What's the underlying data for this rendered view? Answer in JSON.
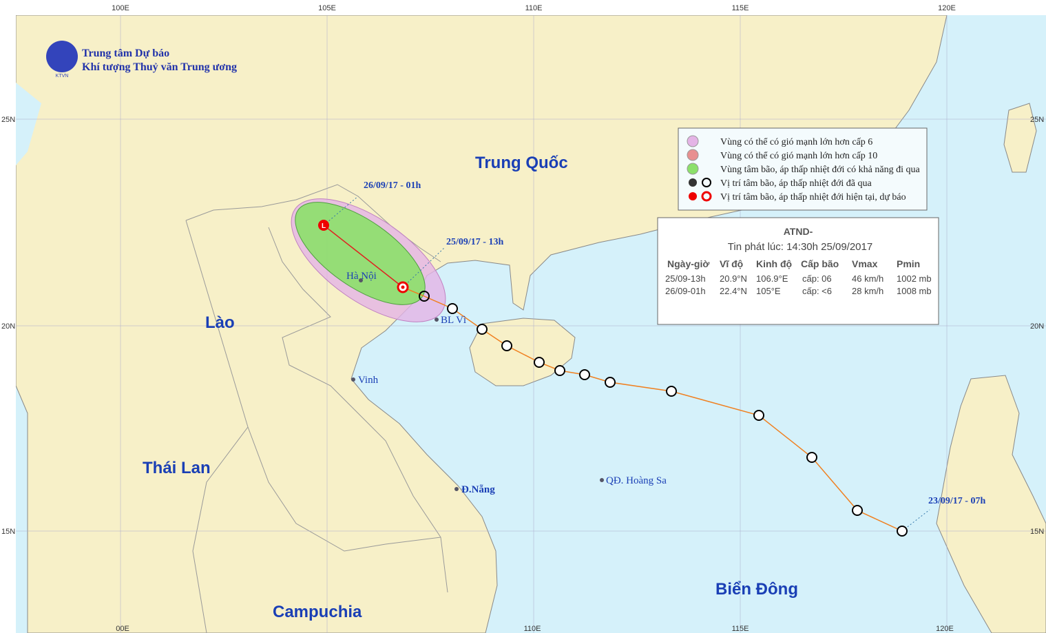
{
  "header": {
    "title": "Trung tâm Dự báo",
    "subtitle": "Khí tượng Thuỷ văn Trung ương",
    "logo": "KTVN"
  },
  "axes": {
    "top": [
      "100E",
      "105E",
      "110E",
      "115E",
      "120E"
    ],
    "bottom": [
      "00E",
      "110E",
      "115E",
      "120E"
    ],
    "left": [
      "25N",
      "20N",
      "15N"
    ],
    "right": [
      "25N",
      "20N",
      "15N"
    ]
  },
  "legend": [
    "Vùng có thể có gió mạnh lớn hơn cấp 6",
    "Vùng có thể có gió mạnh lớn hơn cấp 10",
    "Vùng tâm bão, áp thấp nhiệt đới có khả năng đi qua",
    "Vị trí tâm bão, áp thấp nhiệt đới đã qua",
    "Vị trí tâm bão, áp thấp nhiệt đới hiện tại, dự báo"
  ],
  "bulletin": {
    "title": "ATND-",
    "issued": "Tin phát lúc: 14:30h 25/09/2017",
    "columns": [
      "Ngày-giờ",
      "Vĩ độ",
      "Kinh độ",
      "Cấp bão",
      "Vmax",
      "Pmin"
    ],
    "rows": [
      [
        "25/09-13h",
        "20.9°N",
        "106.9°E",
        "cấp: 06",
        "46 km/h",
        "1002 mb"
      ],
      [
        "26/09-01h",
        "22.4°N",
        "105°E",
        "cấp: <6",
        "28 km/h",
        "1008 mb"
      ]
    ]
  },
  "places": {
    "countries": [
      "Trung Quốc",
      "Lào",
      "Thái Lan",
      "Campuchia",
      "Biển Đông"
    ],
    "cities": [
      "Hà Nội",
      "BL Vì",
      "Vinh",
      "Đ.Nẵng",
      "QĐ. Hoàng Sa"
    ]
  },
  "track_labels": [
    "26/09/17 - 01h",
    "25/09/17 - 13h",
    "23/09/17 - 07h"
  ]
}
